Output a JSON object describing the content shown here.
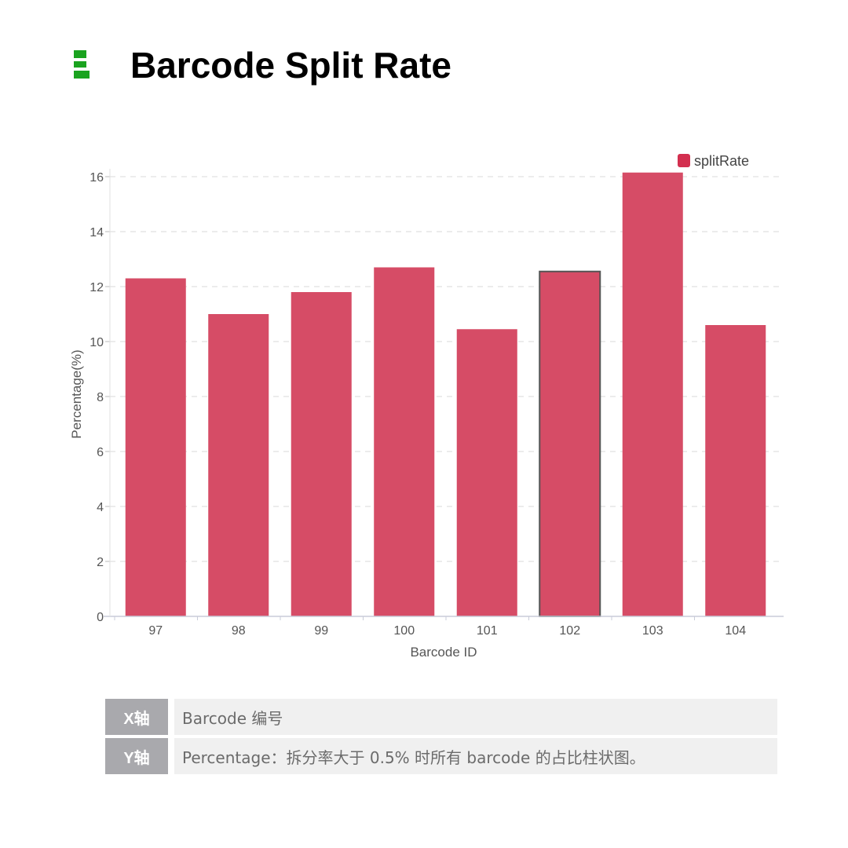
{
  "page": {
    "title": "Barcode Split Rate"
  },
  "colors": {
    "icon": "#1aa31f",
    "bar": "#d64c66",
    "bar_highlight_border": "#555555",
    "grid": "#d8d8d8"
  },
  "chart_data": {
    "type": "bar",
    "categories": [
      "97",
      "98",
      "99",
      "100",
      "101",
      "102",
      "103",
      "104"
    ],
    "series": [
      {
        "name": "splitRate",
        "values": [
          12.3,
          11.0,
          11.8,
          12.7,
          10.45,
          12.55,
          16.15,
          10.6
        ]
      }
    ],
    "xlabel": "Barcode ID",
    "ylabel": "Percentage(%)",
    "ylim": [
      0,
      16
    ],
    "yticks": [
      "0",
      "2",
      "4",
      "6",
      "8",
      "10",
      "12",
      "14",
      "16"
    ],
    "grid": true,
    "legend_position": "top-right",
    "highlighted_category": "102"
  },
  "info": [
    {
      "key": "X轴",
      "value": "Barcode 编号"
    },
    {
      "key": "Y轴",
      "value": "Percentage：拆分率大于 0.5% 时所有 barcode 的占比柱状图。"
    }
  ]
}
